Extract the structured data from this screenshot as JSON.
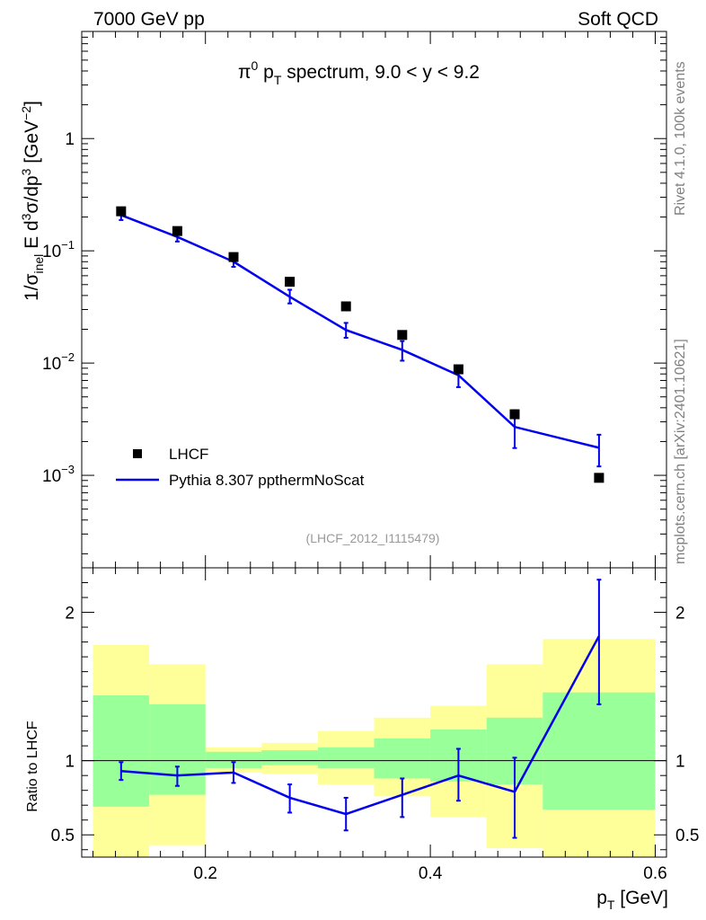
{
  "header": {
    "left": "7000 GeV pp",
    "right": "Soft QCD"
  },
  "side_text": {
    "rivet": "Rivet 4.1.0,  100k events",
    "mcplots": "mcplots.cern.ch [arXiv:2401.10621]"
  },
  "analysis_id": "(LHCF_2012_I1115479)",
  "chart_data": {
    "type": "scatter",
    "title": "π⁰ p_T spectrum, 9.0 < y < 9.2",
    "title_parts": {
      "pre": "π",
      "sup": "0",
      "mid": " p",
      "sub": "T",
      "post": " spectrum, 9.0 < y < 9.2"
    },
    "xlabel": "p_T [GeV]",
    "xlabel_parts": {
      "main": "p",
      "sub": "T",
      "unit": " [GeV]"
    },
    "ylabel": "1/σ_inel E d³σ/dp³ [GeV⁻²]",
    "xlim": [
      0.09,
      0.61
    ],
    "ylim": [
      0.00015,
      9
    ],
    "yscale": "log",
    "x_ticks": [
      "0.2",
      "0.4",
      "0.6"
    ],
    "x_tick_values": [
      0.2,
      0.4,
      0.6
    ],
    "y_ticks": [
      {
        "value": 0.001,
        "base": "10",
        "exp": "−3"
      },
      {
        "value": 0.01,
        "base": "10",
        "exp": "−2"
      },
      {
        "value": 0.1,
        "base": "10",
        "exp": "−1"
      },
      {
        "value": 1,
        "base": "1",
        "exp": ""
      }
    ],
    "legend": {
      "position": "bottom-left",
      "entries": [
        "LHCF",
        "Pythia 8.307 ppthermNoScat"
      ]
    },
    "series": [
      {
        "name": "LHCF",
        "style": "markers",
        "color": "#000000",
        "x": [
          0.125,
          0.175,
          0.225,
          0.275,
          0.325,
          0.375,
          0.425,
          0.475,
          0.55
        ],
        "y": [
          0.225,
          0.15,
          0.088,
          0.053,
          0.032,
          0.0178,
          0.0088,
          0.0035,
          0.00095
        ]
      },
      {
        "name": "Pythia 8.307 ppthermNoScat",
        "style": "line",
        "color": "#0000ee",
        "x": [
          0.125,
          0.175,
          0.225,
          0.275,
          0.325,
          0.375,
          0.425,
          0.475,
          0.55
        ],
        "y": [
          0.208,
          0.133,
          0.08,
          0.039,
          0.0197,
          0.0131,
          0.0078,
          0.0027,
          0.00176
        ],
        "err_low": [
          0.188,
          0.121,
          0.072,
          0.034,
          0.0168,
          0.0105,
          0.0061,
          0.00175,
          0.0012
        ],
        "err_high": [
          0.227,
          0.145,
          0.088,
          0.045,
          0.0228,
          0.0157,
          0.0095,
          0.0038,
          0.0023
        ]
      }
    ],
    "ratio_panel": {
      "ylabel": "Ratio to LHCF",
      "ylim": [
        0.35,
        2.3
      ],
      "y_ticks": [
        0.5,
        1,
        2
      ],
      "y_tick_labels": [
        "0.5",
        "1",
        "2"
      ],
      "reference": 1,
      "bins": [
        0.1,
        0.15,
        0.2,
        0.25,
        0.3,
        0.35,
        0.4,
        0.45,
        0.5,
        0.6
      ],
      "band_green_low": [
        0.69,
        0.77,
        0.95,
        0.97,
        0.95,
        0.88,
        0.86,
        0.84,
        0.67
      ],
      "band_green_high": [
        1.44,
        1.38,
        1.06,
        1.07,
        1.09,
        1.15,
        1.21,
        1.29,
        1.46
      ],
      "band_yellow_low": [
        0.32,
        0.43,
        0.92,
        0.91,
        0.84,
        0.76,
        0.62,
        0.41,
        0.33
      ],
      "band_yellow_high": [
        1.78,
        1.65,
        1.09,
        1.12,
        1.2,
        1.29,
        1.37,
        1.65,
        1.82
      ],
      "ratio_x": [
        0.125,
        0.175,
        0.225,
        0.275,
        0.325,
        0.375,
        0.425,
        0.475,
        0.55
      ],
      "ratio_y": [
        0.93,
        0.9,
        0.92,
        0.75,
        0.64,
        0.77,
        0.9,
        0.79,
        1.84
      ],
      "ratio_lo": [
        0.87,
        0.83,
        0.85,
        0.65,
        0.53,
        0.62,
        0.73,
        0.48,
        1.38
      ],
      "ratio_hi": [
        0.99,
        0.96,
        0.99,
        0.84,
        0.75,
        0.88,
        1.08,
        1.02,
        2.22
      ]
    }
  }
}
